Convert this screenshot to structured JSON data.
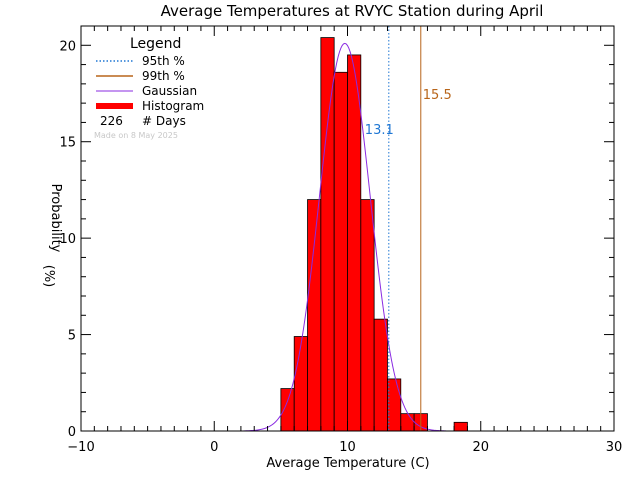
{
  "chart_data": {
    "type": "bar",
    "title": "Average Temperatures at RVYC Station during April",
    "xlabel": "Average Temperature (C)",
    "ylabel": "Probability",
    "ylabel_unit": "(%)",
    "xlim": [
      -10,
      30
    ],
    "ylim": [
      0,
      21
    ],
    "xticks": [
      "−10",
      "0",
      "10",
      "20",
      "30"
    ],
    "yticks": [
      "0",
      "5",
      "10",
      "15",
      "20"
    ],
    "histogram": {
      "name": "Histogram",
      "bin_width": 1,
      "bins": [
        {
          "x0": 5,
          "value": 2.2
        },
        {
          "x0": 6,
          "value": 4.9
        },
        {
          "x0": 7,
          "value": 12.0
        },
        {
          "x0": 8,
          "value": 20.4
        },
        {
          "x0": 9,
          "value": 18.6
        },
        {
          "x0": 10,
          "value": 19.5
        },
        {
          "x0": 11,
          "value": 12.0
        },
        {
          "x0": 12,
          "value": 5.8
        },
        {
          "x0": 13,
          "value": 2.7
        },
        {
          "x0": 14,
          "value": 0.9
        },
        {
          "x0": 15,
          "value": 0.9
        },
        {
          "x0": 18,
          "value": 0.45
        }
      ]
    },
    "gaussian": {
      "name": "Gaussian",
      "mean": 9.8,
      "peak": 20.1,
      "sigma": 1.9
    },
    "percentiles": [
      {
        "name": "95th %",
        "value": 13.1,
        "label": "13.1",
        "color": "#1f77d4",
        "style": "dotted"
      },
      {
        "name": "99th %",
        "value": 15.5,
        "label": "15.5",
        "color": "#b8651a",
        "style": "solid"
      }
    ],
    "legend": {
      "title": "Legend",
      "placement": "top-left",
      "items": [
        "95th %",
        "99th %",
        "Gaussian",
        "Histogram"
      ],
      "days_count": "226",
      "days_label": "# Days"
    },
    "annotation": "Made on 8 May 2025",
    "colors": {
      "histogram": "#ff0000",
      "gaussian": "#8a2be2",
      "p95": "#1f77d4",
      "p99": "#b8651a"
    }
  }
}
